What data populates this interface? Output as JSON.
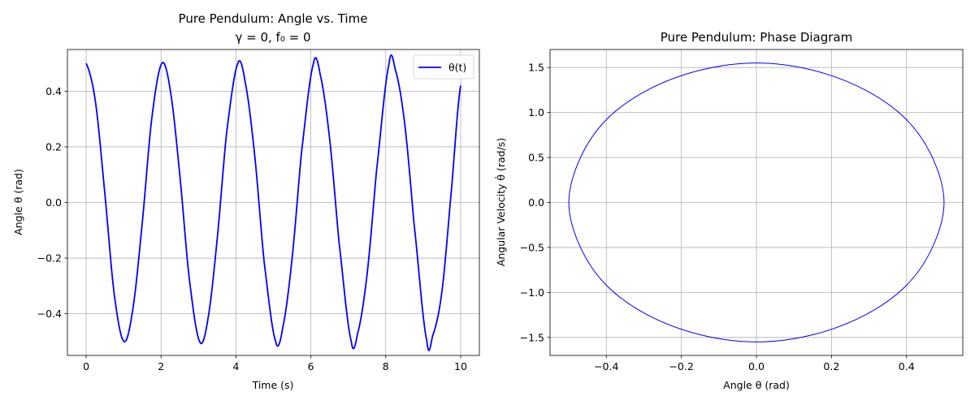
{
  "colors": {
    "series": "#0000ff",
    "grid": "#b0b0b0",
    "legend_border": "#cccccc"
  },
  "chart_data": [
    {
      "type": "line",
      "title": "Pure Pendulum: Angle vs. Time",
      "subtitle": "γ = 0, f₀ = 0",
      "xlabel": "Time (s)",
      "ylabel": "Angle θ (rad)",
      "xlim": [
        -0.5,
        10.5
      ],
      "ylim": [
        -0.55,
        0.55
      ],
      "xticks": [
        0,
        2,
        4,
        6,
        8,
        10
      ],
      "xtick_labels": [
        "0",
        "2",
        "4",
        "6",
        "8",
        "10"
      ],
      "yticks": [
        -0.4,
        -0.2,
        0.0,
        0.2,
        0.4
      ],
      "ytick_labels": [
        "−0.4",
        "−0.2",
        "0.0",
        "0.2",
        "0.4"
      ],
      "grid": true,
      "legend_position": "upper-right",
      "series": [
        {
          "name": "θ(t)",
          "color": "#0000ff",
          "x": [
            0,
            0.25,
            0.5,
            0.75,
            1.01,
            1.25,
            1.5,
            1.75,
            2.02,
            2.25,
            2.5,
            2.75,
            3.03,
            3.25,
            3.5,
            3.75,
            4.05,
            4.25,
            4.5,
            4.75,
            5.06,
            5.25,
            5.5,
            5.75,
            6.07,
            6.25,
            6.5,
            6.75,
            7.08,
            7.25,
            7.5,
            7.75,
            8.09,
            8.25,
            8.5,
            8.75,
            9.1,
            9.25,
            9.5,
            9.75,
            10.0
          ],
          "y": [
            0.5,
            0.36,
            0.03,
            -0.33,
            -0.5,
            -0.38,
            -0.07,
            0.3,
            0.5,
            0.4,
            0.1,
            -0.27,
            -0.5,
            -0.42,
            -0.13,
            0.25,
            0.5,
            0.43,
            0.17,
            -0.21,
            -0.5,
            -0.45,
            -0.2,
            0.18,
            0.5,
            0.46,
            0.23,
            -0.14,
            -0.5,
            -0.47,
            -0.26,
            0.11,
            0.5,
            0.48,
            0.29,
            -0.07,
            -0.5,
            -0.48,
            -0.32,
            0.04,
            0.42
          ]
        }
      ]
    },
    {
      "type": "line",
      "title": "Pure Pendulum: Phase Diagram",
      "xlabel": "Angle θ (rad)",
      "ylabel": "Angular Velocity θ̇ (rad/s)",
      "xlim": [
        -0.55,
        0.55
      ],
      "ylim": [
        -1.7,
        1.7
      ],
      "xticks": [
        -0.4,
        -0.2,
        0.0,
        0.2,
        0.4
      ],
      "xtick_labels": [
        "−0.4",
        "−0.2",
        "0.0",
        "0.2",
        "0.4"
      ],
      "yticks": [
        -1.5,
        -1.0,
        -0.5,
        0.0,
        0.5,
        1.0,
        1.5
      ],
      "ytick_labels": [
        "−1.5",
        "−1.0",
        "−0.5",
        "0.0",
        "0.5",
        "1.0",
        "1.5"
      ],
      "grid": true,
      "series": [
        {
          "color": "#0000ff",
          "x": [
            0.5,
            0.47,
            0.4,
            0.29,
            0.15,
            0.0,
            -0.15,
            -0.29,
            -0.4,
            -0.47,
            -0.5,
            -0.47,
            -0.4,
            -0.29,
            -0.15,
            0.0,
            0.15,
            0.29,
            0.4,
            0.47,
            0.5
          ],
          "y": [
            0.0,
            0.49,
            0.92,
            1.25,
            1.47,
            1.55,
            1.47,
            1.25,
            0.92,
            0.49,
            0.0,
            -0.49,
            -0.92,
            -1.25,
            -1.47,
            -1.55,
            -1.47,
            -1.25,
            -0.92,
            -0.49,
            0.0
          ]
        }
      ]
    }
  ]
}
